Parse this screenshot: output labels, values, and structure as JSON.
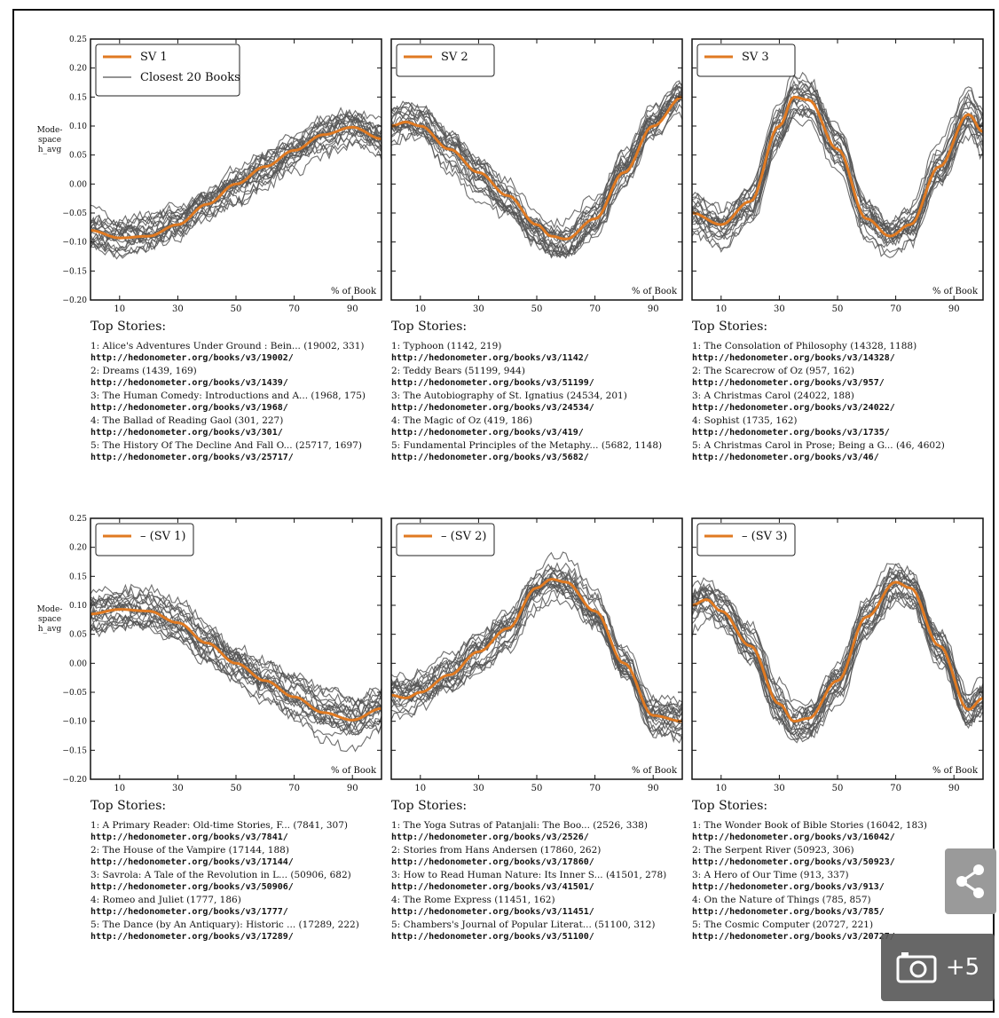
{
  "figure": {
    "ylabel_lines": [
      "Mode-",
      "space",
      "h_avg"
    ],
    "panel_corner_label": "% of Book",
    "stories_heading": "Top Stories:"
  },
  "chart_data": [
    {
      "type": "line",
      "title": "",
      "legend": {
        "placement": "top-left",
        "entries": [
          "SV 1",
          "Closest 20 Books"
        ]
      },
      "xlabel": "% of Book",
      "ylabel": "Mode-space h_avg",
      "xlim": [
        0,
        100
      ],
      "ylim": [
        -0.2,
        0.25
      ],
      "xticks": [
        10,
        30,
        50,
        70,
        90
      ],
      "yticks": [
        -0.2,
        -0.15,
        -0.1,
        -0.05,
        0.0,
        0.05,
        0.1,
        0.15,
        0.2,
        0.25
      ],
      "series": [
        {
          "name": "SV 1",
          "color": "#e07a22",
          "x": [
            0,
            10,
            20,
            30,
            40,
            50,
            60,
            70,
            80,
            90,
            100
          ],
          "y": [
            -0.08,
            -0.093,
            -0.09,
            -0.07,
            -0.035,
            0.0,
            0.03,
            0.058,
            0.085,
            0.098,
            0.078
          ]
        },
        {
          "name": "Closest 20 Books",
          "color": "#555555",
          "count": 20
        }
      ],
      "top_stories": [
        {
          "title": "1: Alice's Adventures Under Ground : Bein... (19002, 331)",
          "url": "http://hedonometer.org/books/v3/19002/"
        },
        {
          "title": "2: Dreams (1439, 169)",
          "url": "http://hedonometer.org/books/v3/1439/"
        },
        {
          "title": "3: The Human Comedy: Introductions and A... (1968, 175)",
          "url": "http://hedonometer.org/books/v3/1968/"
        },
        {
          "title": "4: The Ballad of Reading Gaol (301, 227)",
          "url": "http://hedonometer.org/books/v3/301/"
        },
        {
          "title": "5: The History Of The Decline And Fall O... (25717, 1697)",
          "url": "http://hedonometer.org/books/v3/25717/"
        }
      ]
    },
    {
      "type": "line",
      "title": "",
      "legend": {
        "placement": "top-left",
        "entries": [
          "SV 2"
        ]
      },
      "xlabel": "% of Book",
      "xlim": [
        0,
        100
      ],
      "ylim": [
        -0.2,
        0.25
      ],
      "xticks": [
        10,
        30,
        50,
        70,
        90
      ],
      "series": [
        {
          "name": "SV 2",
          "color": "#e07a22",
          "x": [
            0,
            5,
            10,
            20,
            30,
            40,
            50,
            55,
            60,
            70,
            80,
            90,
            100
          ],
          "y": [
            0.1,
            0.107,
            0.1,
            0.06,
            0.02,
            -0.02,
            -0.07,
            -0.09,
            -0.095,
            -0.06,
            0.02,
            0.1,
            0.15
          ]
        },
        {
          "name": "Closest 20 Books",
          "color": "#555555",
          "count": 20
        }
      ],
      "top_stories": [
        {
          "title": "1: Typhoon (1142, 219)",
          "url": "http://hedonometer.org/books/v3/1142/"
        },
        {
          "title": "2: Teddy Bears (51199, 944)",
          "url": "http://hedonometer.org/books/v3/51199/"
        },
        {
          "title": "3: The Autobiography of St. Ignatius (24534, 201)",
          "url": "http://hedonometer.org/books/v3/24534/"
        },
        {
          "title": "4: The Magic of Oz (419, 186)",
          "url": "http://hedonometer.org/books/v3/419/"
        },
        {
          "title": "5: Fundamental Principles of the Metaphy... (5682, 1148)",
          "url": "http://hedonometer.org/books/v3/5682/"
        }
      ]
    },
    {
      "type": "line",
      "title": "",
      "legend": {
        "placement": "top-left",
        "entries": [
          "SV 3"
        ]
      },
      "xlabel": "% of Book",
      "xlim": [
        0,
        100
      ],
      "ylim": [
        -0.2,
        0.25
      ],
      "xticks": [
        10,
        30,
        50,
        70,
        90
      ],
      "series": [
        {
          "name": "SV 3",
          "color": "#e07a22",
          "x": [
            0,
            10,
            20,
            30,
            35,
            40,
            50,
            60,
            68,
            75,
            85,
            95,
            100
          ],
          "y": [
            -0.05,
            -0.07,
            -0.03,
            0.1,
            0.15,
            0.145,
            0.06,
            -0.06,
            -0.09,
            -0.07,
            0.03,
            0.12,
            0.09
          ]
        },
        {
          "name": "Closest 20 Books",
          "color": "#555555",
          "count": 20
        }
      ],
      "top_stories": [
        {
          "title": "1: The Consolation of Philosophy (14328, 1188)",
          "url": "http://hedonometer.org/books/v3/14328/"
        },
        {
          "title": "2: The Scarecrow of Oz (957, 162)",
          "url": "http://hedonometer.org/books/v3/957/"
        },
        {
          "title": "3: A Christmas Carol (24022, 188)",
          "url": "http://hedonometer.org/books/v3/24022/"
        },
        {
          "title": "4: Sophist (1735, 162)",
          "url": "http://hedonometer.org/books/v3/1735/"
        },
        {
          "title": "5: A Christmas Carol in Prose; Being a G... (46, 4602)",
          "url": "http://hedonometer.org/books/v3/46/"
        }
      ]
    },
    {
      "type": "line",
      "title": "",
      "legend": {
        "placement": "top-left",
        "entries": [
          "– (SV 1)"
        ]
      },
      "xlabel": "% of Book",
      "ylabel": "Mode-space h_avg",
      "xlim": [
        0,
        100
      ],
      "ylim": [
        -0.2,
        0.25
      ],
      "xticks": [
        10,
        30,
        50,
        70,
        90
      ],
      "yticks": [
        -0.2,
        -0.15,
        -0.1,
        -0.05,
        0.0,
        0.05,
        0.1,
        0.15,
        0.2,
        0.25
      ],
      "series": [
        {
          "name": "– (SV 1)",
          "color": "#e07a22",
          "x": [
            0,
            10,
            20,
            30,
            40,
            50,
            60,
            70,
            80,
            90,
            100
          ],
          "y": [
            0.085,
            0.093,
            0.09,
            0.07,
            0.035,
            0.0,
            -0.03,
            -0.058,
            -0.085,
            -0.098,
            -0.078
          ]
        },
        {
          "name": "Closest 20 Books",
          "color": "#555555",
          "count": 20
        }
      ],
      "top_stories": [
        {
          "title": "1: A Primary Reader: Old-time Stories, F... (7841, 307)",
          "url": "http://hedonometer.org/books/v3/7841/"
        },
        {
          "title": "2: The House of the Vampire (17144, 188)",
          "url": "http://hedonometer.org/books/v3/17144/"
        },
        {
          "title": "3: Savrola: A Tale of the Revolution in L... (50906, 682)",
          "url": "http://hedonometer.org/books/v3/50906/"
        },
        {
          "title": "4: Romeo and Juliet (1777, 186)",
          "url": "http://hedonometer.org/books/v3/1777/"
        },
        {
          "title": "5: The Dance (by An Antiquary): Historic ... (17289, 222)",
          "url": "http://hedonometer.org/books/v3/17289/"
        }
      ]
    },
    {
      "type": "line",
      "title": "",
      "legend": {
        "placement": "top-left",
        "entries": [
          "– (SV 2)"
        ]
      },
      "xlabel": "% of Book",
      "xlim": [
        0,
        100
      ],
      "ylim": [
        -0.2,
        0.25
      ],
      "xticks": [
        10,
        30,
        50,
        70,
        90
      ],
      "series": [
        {
          "name": "– (SV 2)",
          "color": "#e07a22",
          "x": [
            0,
            5,
            10,
            20,
            30,
            40,
            50,
            55,
            60,
            70,
            80,
            90,
            100
          ],
          "y": [
            -0.055,
            -0.06,
            -0.05,
            -0.02,
            0.02,
            0.06,
            0.13,
            0.145,
            0.14,
            0.09,
            0.0,
            -0.09,
            -0.1
          ]
        },
        {
          "name": "Closest 20 Books",
          "color": "#555555",
          "count": 20
        }
      ],
      "top_stories": [
        {
          "title": "1: The Yoga Sutras of Patanjali: The Boo... (2526, 338)",
          "url": "http://hedonometer.org/books/v3/2526/"
        },
        {
          "title": "2: Stories from Hans Andersen (17860, 262)",
          "url": "http://hedonometer.org/books/v3/17860/"
        },
        {
          "title": "3: How to Read Human Nature: Its Inner S... (41501, 278)",
          "url": "http://hedonometer.org/books/v3/41501/"
        },
        {
          "title": "4: The Rome Express (11451, 162)",
          "url": "http://hedonometer.org/books/v3/11451/"
        },
        {
          "title": "5: Chambers's Journal of Popular Literat... (51100, 312)",
          "url": "http://hedonometer.org/books/v3/51100/"
        }
      ]
    },
    {
      "type": "line",
      "title": "",
      "legend": {
        "placement": "top-left",
        "entries": [
          "– (SV 3)"
        ]
      },
      "xlabel": "% of Book",
      "xlim": [
        0,
        100
      ],
      "ylim": [
        -0.2,
        0.25
      ],
      "xticks": [
        10,
        30,
        50,
        70,
        90
      ],
      "series": [
        {
          "name": "– (SV 3)",
          "color": "#e07a22",
          "x": [
            0,
            5,
            10,
            20,
            30,
            35,
            40,
            50,
            60,
            70,
            75,
            85,
            95,
            100
          ],
          "y": [
            0.1,
            0.11,
            0.09,
            0.03,
            -0.07,
            -0.1,
            -0.095,
            -0.03,
            0.08,
            0.14,
            0.13,
            0.03,
            -0.08,
            -0.06
          ]
        },
        {
          "name": "Closest 20 Books",
          "color": "#555555",
          "count": 20
        }
      ],
      "top_stories": [
        {
          "title": "1: The Wonder Book of Bible Stories (16042, 183)",
          "url": "http://hedonometer.org/books/v3/16042/"
        },
        {
          "title": "2: The Serpent River (50923, 306)",
          "url": "http://hedonometer.org/books/v3/50923/"
        },
        {
          "title": "3: A Hero of Our Time (913, 337)",
          "url": "http://hedonometer.org/books/v3/913/"
        },
        {
          "title": "4: On the Nature of Things (785, 857)",
          "url": "http://hedonometer.org/books/v3/785/"
        },
        {
          "title": "5: The Cosmic Computer (20727, 221)",
          "url": "http://hedonometer.org/books/v3/20727/"
        }
      ]
    }
  ],
  "overlay": {
    "share_icon": "share-icon",
    "gallery_icon": "camera-icon",
    "gallery_count": "+5"
  }
}
